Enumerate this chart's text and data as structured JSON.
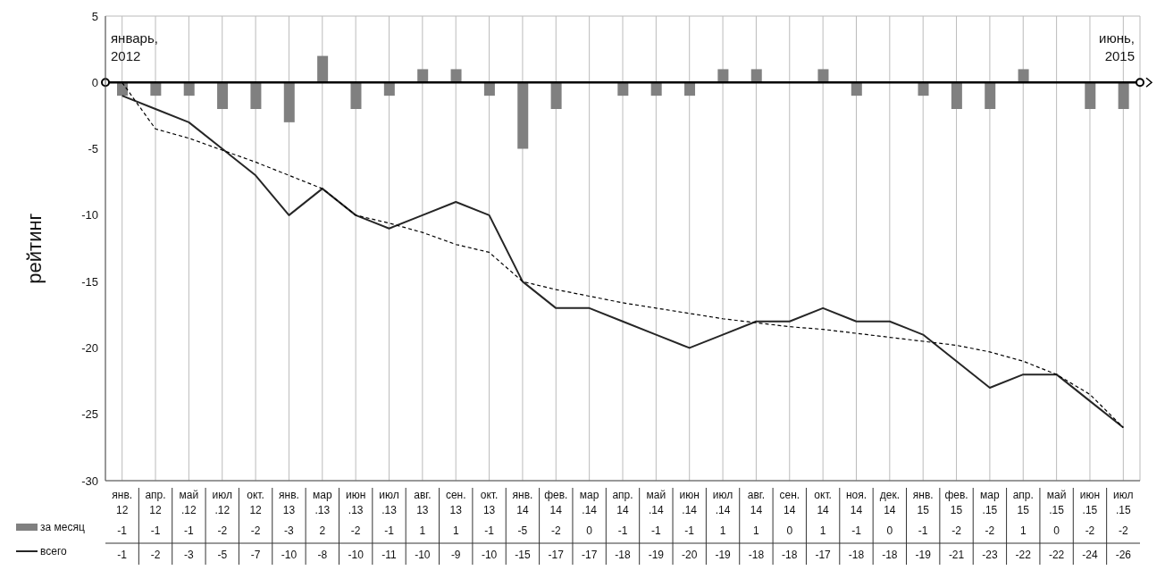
{
  "chart_data": {
    "type": "bar",
    "ylabel": "рейтинг",
    "categories": [
      "янв. 12",
      "апр. 12",
      "май .12",
      "июл .12",
      "окт. 12",
      "янв. 13",
      "мар .13",
      "июн .13",
      "июл .13",
      "авг. 13",
      "сен. 13",
      "окт. 13",
      "янв. 14",
      "фев. 14",
      "мар .14",
      "апр. 14",
      "май .14",
      "июн .14",
      "июл .14",
      "авг. 14",
      "сен. 14",
      "окт. 14",
      "ноя. 14",
      "дек. 14",
      "янв. 15",
      "фев. 15",
      "мар .15",
      "апр. 15",
      "май .15",
      "июн .15",
      "июл .15"
    ],
    "series": [
      {
        "name": "за месяц",
        "color": "#808080",
        "values": [
          -1,
          -1,
          -1,
          -2,
          -2,
          -3,
          2,
          -2,
          -1,
          1,
          1,
          -1,
          -5,
          -2,
          0,
          -1,
          -1,
          -1,
          1,
          1,
          0,
          1,
          -1,
          0,
          -1,
          -2,
          -2,
          1,
          0,
          -2,
          -2
        ],
        "value_labels": [
          "-1",
          "-1",
          "-1",
          "-2",
          "-2",
          "-3",
          "2",
          "-2",
          "-1",
          "1",
          "1",
          "-1",
          "-5",
          "-2",
          "0",
          "-1",
          "-1",
          "-1",
          "1",
          "1",
          "0",
          "1",
          "-1",
          "0",
          "-1",
          "-2",
          "-2",
          "1",
          "0",
          "-2",
          "-2"
        ]
      },
      {
        "name": "всего",
        "type": "line",
        "color": "#262626",
        "values": [
          -1,
          -2,
          -3,
          -5,
          -7,
          -10,
          -8,
          -10,
          -11,
          -10,
          -9,
          -10,
          -15,
          -17,
          -17,
          -18,
          -19,
          -20,
          -19,
          -18,
          -18,
          -17,
          -18,
          -18,
          -19,
          -21,
          -23,
          -22,
          -22,
          -24,
          -26
        ],
        "value_labels": [
          "-1",
          "-2",
          "-3",
          "-5",
          "-7",
          "-10",
          "-8",
          "-10",
          "-11",
          "-10",
          "-9",
          "-10",
          "-15",
          "-17",
          "-17",
          "-18",
          "-19",
          "-20",
          "-19",
          "-18",
          "-18",
          "-17",
          "-18",
          "-18",
          "-19",
          "-21",
          "-23",
          "-22",
          "-22",
          "-24",
          "-26"
        ]
      },
      {
        "type": "line",
        "color": "#000000",
        "line_style": "dashed",
        "values": [
          0,
          -3.5,
          -4.2,
          -5.1,
          -6,
          -7,
          -8,
          -10,
          -10.6,
          -11.3,
          -12.2,
          -12.8,
          -15,
          -15.6,
          -16.1,
          -16.6,
          -17,
          -17.4,
          -17.8,
          -18.1,
          -18.4,
          -18.6,
          -18.9,
          -19.2,
          -19.5,
          -19.8,
          -20.3,
          -21,
          -22,
          -23.5,
          -26
        ]
      }
    ],
    "ylim": [
      -30,
      5
    ],
    "yticks": [
      -30,
      -25,
      -20,
      -15,
      -10,
      -5,
      0,
      5
    ],
    "grid": true,
    "legend": "bottom left",
    "marker": "none",
    "ref_lines": [
      {
        "axis": "y",
        "value": 0,
        "color": "#000000"
      }
    ],
    "annotations": [
      "январь, 2012",
      "июнь, 2015"
    ]
  }
}
